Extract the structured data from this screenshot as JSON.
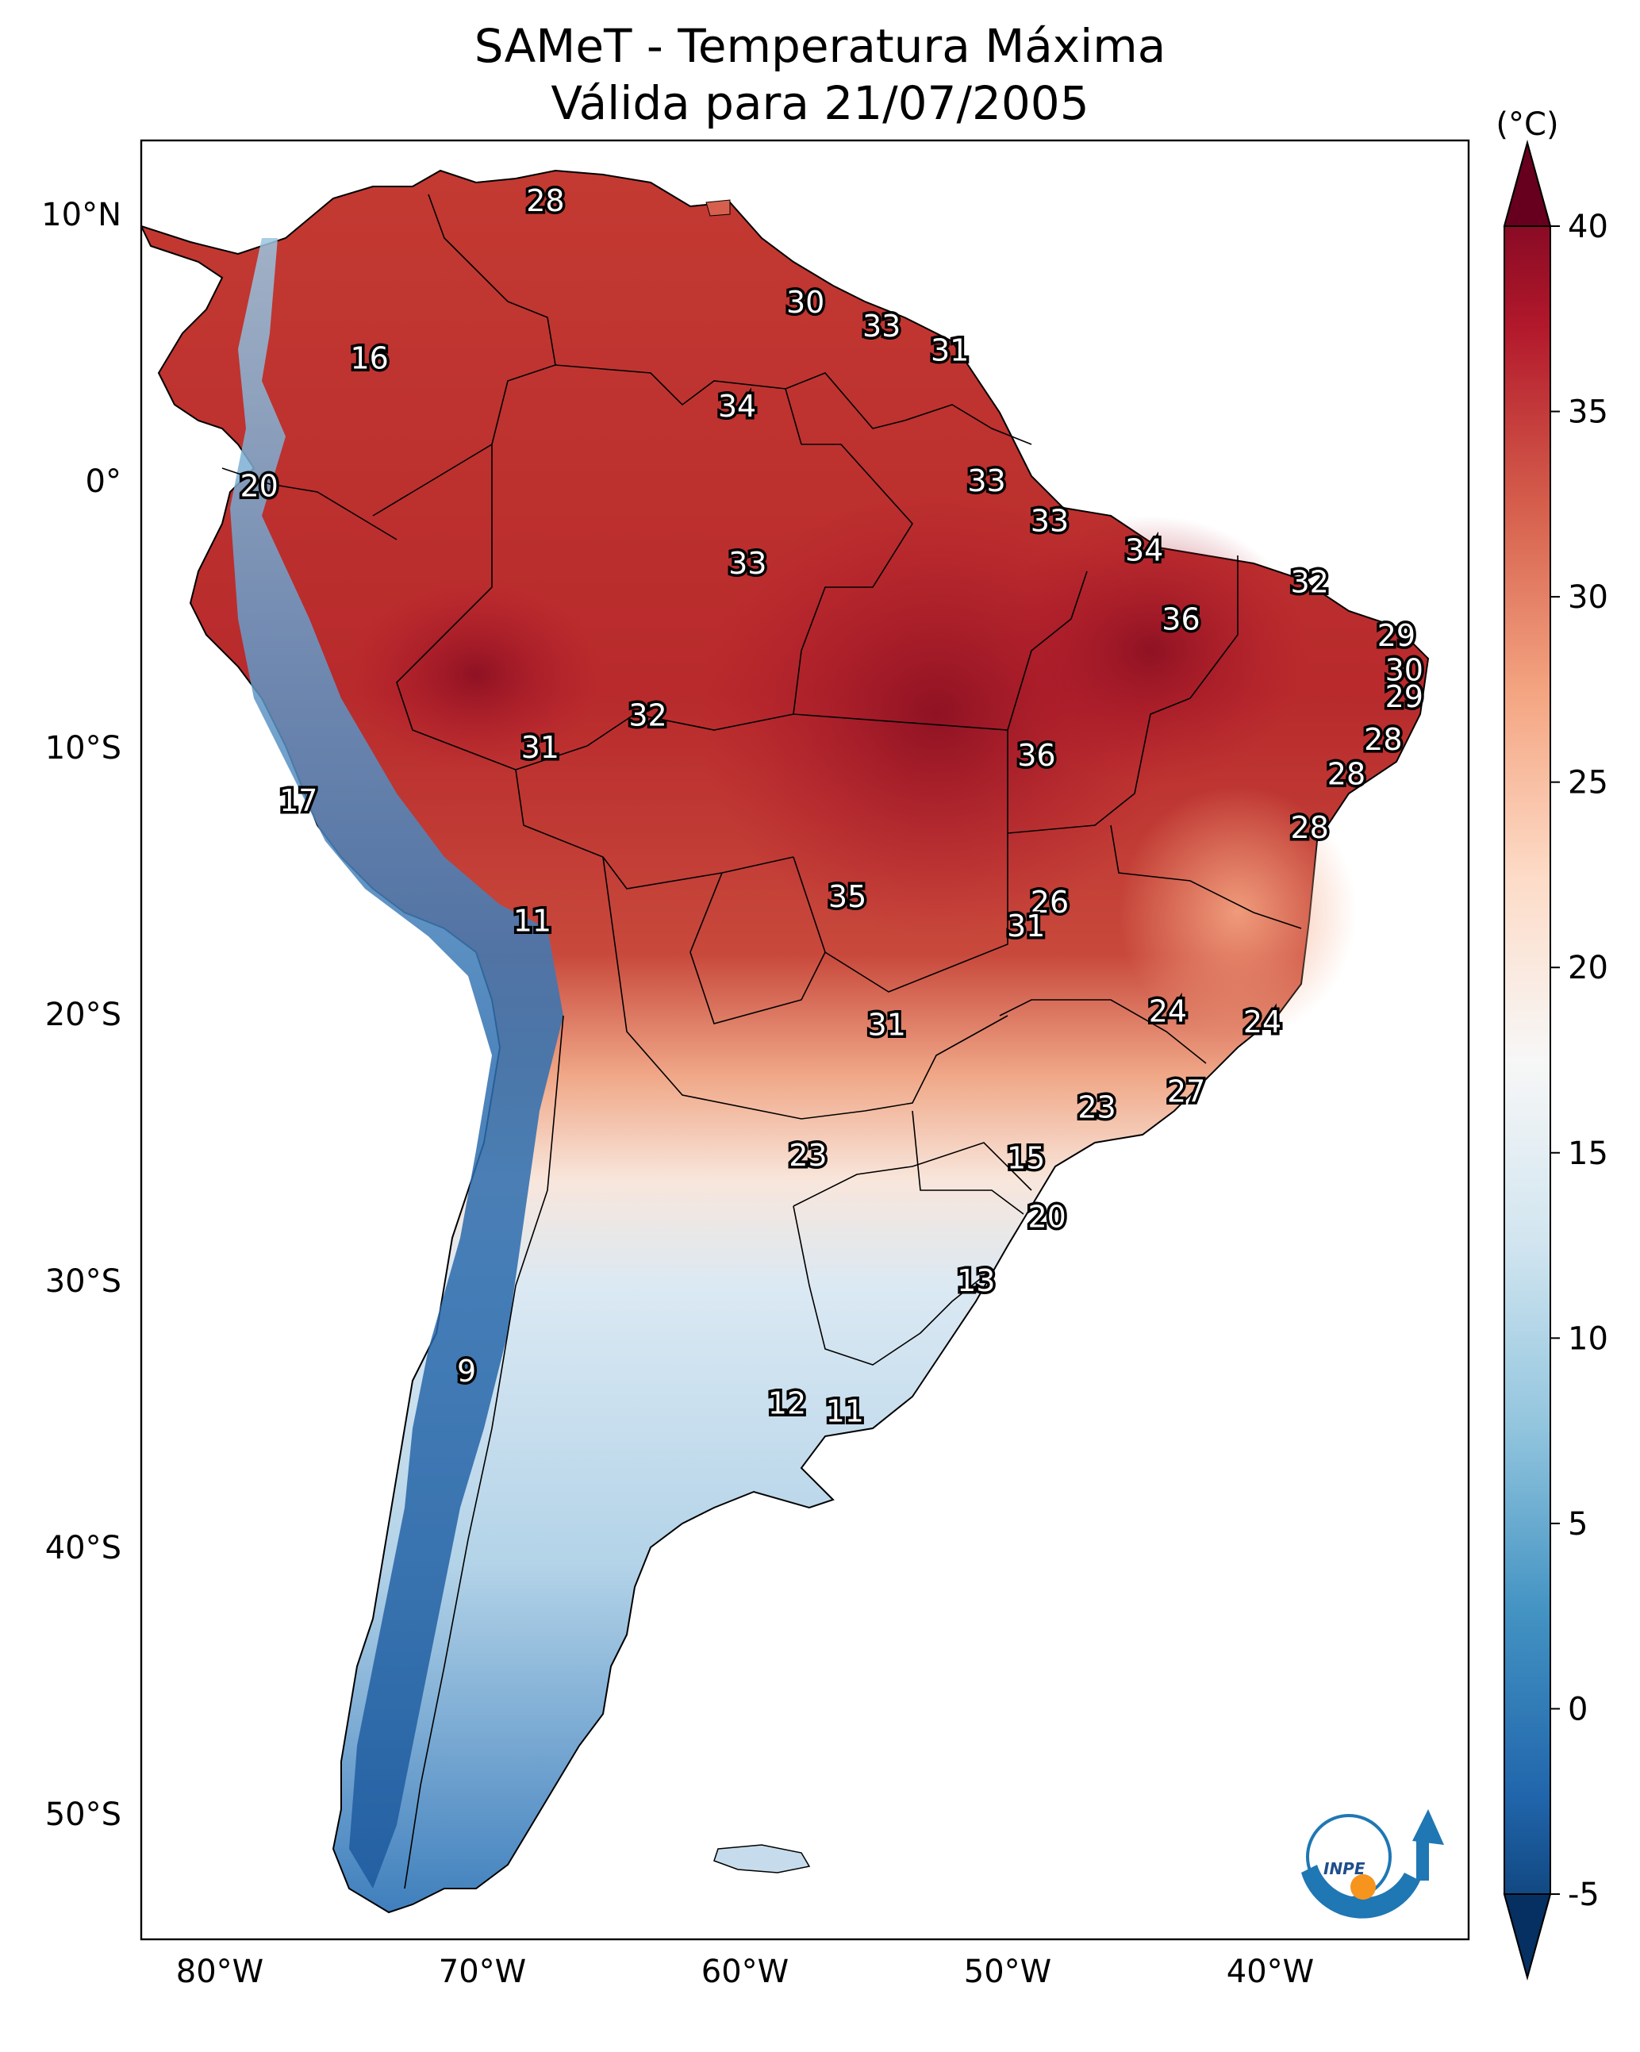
{
  "title": {
    "line1": "SAMeT - Temperatura Máxima",
    "line2": "Válida para 21/07/2005"
  },
  "axes": {
    "lat_ticks": [
      "10°N",
      "0°",
      "10°S",
      "20°S",
      "30°S",
      "40°S",
      "50°S"
    ],
    "lon_ticks": [
      "80°W",
      "70°W",
      "60°W",
      "50°W",
      "40°W"
    ]
  },
  "colorbar": {
    "unit": "(°C)",
    "min": -5,
    "max": 40,
    "ticks": [
      "40",
      "35",
      "30",
      "25",
      "20",
      "15",
      "10",
      "5",
      "0",
      "-5"
    ],
    "colors": [
      "#053061",
      "#2166ac",
      "#4393c3",
      "#92c5de",
      "#d1e5f0",
      "#f7f7f7",
      "#fddbc7",
      "#f4a582",
      "#d6604d",
      "#b2182b",
      "#67001f"
    ]
  },
  "logo": {
    "text": "INPE"
  },
  "station_labels": [
    {
      "text": "28",
      "lon": -67.6,
      "lat": 10.5
    },
    {
      "text": "16",
      "lon": -74.3,
      "lat": 4.6
    },
    {
      "text": "30",
      "lon": -57.7,
      "lat": 6.7
    },
    {
      "text": "33",
      "lon": -54.8,
      "lat": 5.8
    },
    {
      "text": "31",
      "lon": -52.2,
      "lat": 4.9
    },
    {
      "text": "34",
      "lon": -60.3,
      "lat": 2.8
    },
    {
      "text": "20",
      "lon": -78.5,
      "lat": -0.2
    },
    {
      "text": "33",
      "lon": -50.8,
      "lat": 0.0
    },
    {
      "text": "33",
      "lon": -48.4,
      "lat": -1.5
    },
    {
      "text": "34",
      "lon": -44.8,
      "lat": -2.6
    },
    {
      "text": "33",
      "lon": -59.9,
      "lat": -3.1
    },
    {
      "text": "32",
      "lon": -38.5,
      "lat": -3.8
    },
    {
      "text": "36",
      "lon": -43.4,
      "lat": -5.2
    },
    {
      "text": "29",
      "lon": -35.2,
      "lat": -5.8
    },
    {
      "text": "30",
      "lon": -34.9,
      "lat": -7.1
    },
    {
      "text": "29",
      "lon": -34.9,
      "lat": -8.1
    },
    {
      "text": "32",
      "lon": -63.7,
      "lat": -8.8
    },
    {
      "text": "31",
      "lon": -67.8,
      "lat": -10.0
    },
    {
      "text": "28",
      "lon": -35.7,
      "lat": -9.7
    },
    {
      "text": "36",
      "lon": -48.9,
      "lat": -10.3
    },
    {
      "text": "28",
      "lon": -37.1,
      "lat": -11.0
    },
    {
      "text": "17",
      "lon": -77.0,
      "lat": -12.0
    },
    {
      "text": "28",
      "lon": -38.5,
      "lat": -13.0
    },
    {
      "text": "26",
      "lon": -48.4,
      "lat": -15.8
    },
    {
      "text": "35",
      "lon": -56.1,
      "lat": -15.6
    },
    {
      "text": "11",
      "lon": -68.1,
      "lat": -16.5
    },
    {
      "text": "31",
      "lon": -49.3,
      "lat": -16.7
    },
    {
      "text": "24",
      "lon": -43.9,
      "lat": -19.9
    },
    {
      "text": "24",
      "lon": -40.3,
      "lat": -20.3
    },
    {
      "text": "31",
      "lon": -54.6,
      "lat": -20.4
    },
    {
      "text": "27",
      "lon": -43.2,
      "lat": -22.9
    },
    {
      "text": "23",
      "lon": -46.6,
      "lat": -23.5
    },
    {
      "text": "23",
      "lon": -57.6,
      "lat": -25.3
    },
    {
      "text": "15",
      "lon": -49.3,
      "lat": -25.4
    },
    {
      "text": "20",
      "lon": -48.5,
      "lat": -27.6
    },
    {
      "text": "13",
      "lon": -51.2,
      "lat": -30.0
    },
    {
      "text": "9",
      "lon": -70.6,
      "lat": -33.4
    },
    {
      "text": "12",
      "lon": -58.4,
      "lat": -34.6
    },
    {
      "text": "11",
      "lon": -56.2,
      "lat": -34.9
    }
  ]
}
